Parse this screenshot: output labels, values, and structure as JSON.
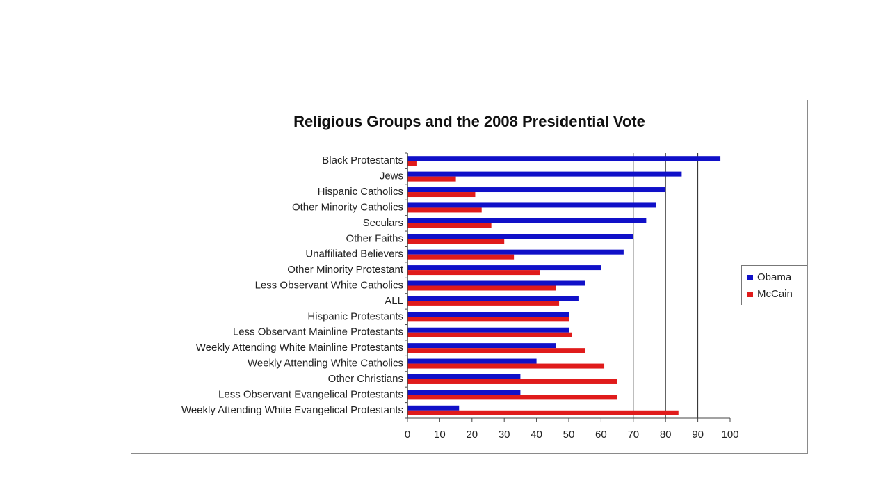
{
  "colors": {
    "obama": "#1010c8",
    "mccain": "#e01b1b",
    "grid": "#222222",
    "axis": "#444444"
  },
  "chart_data": {
    "type": "bar",
    "orientation": "horizontal",
    "title": "Religious Groups and the 2008 Presidential Vote",
    "categories": [
      "Black Protestants",
      "Jews",
      "Hispanic Catholics",
      "Other Minority Catholics",
      "Seculars",
      "Other Faiths",
      "Unaffiliated Believers",
      "Other Minority Protestant",
      "Less Observant White Catholics",
      "ALL",
      "Hispanic Protestants",
      "Less Observant Mainline Protestants",
      "Weekly Attending White Mainline Protestants",
      "Weekly Attending White Catholics",
      "Other Christians",
      "Less Observant Evangelical Protestants",
      "Weekly Attending White Evangelical Protestants"
    ],
    "series": [
      {
        "name": "Obama",
        "color": "#1010c8",
        "values": [
          97,
          85,
          80,
          77,
          74,
          70,
          67,
          60,
          55,
          53,
          50,
          50,
          46,
          40,
          35,
          35,
          16
        ]
      },
      {
        "name": "McCain",
        "color": "#e01b1b",
        "values": [
          3,
          15,
          21,
          23,
          26,
          30,
          33,
          41,
          46,
          47,
          50,
          51,
          55,
          61,
          65,
          65,
          84
        ]
      }
    ],
    "xlim": [
      0,
      100
    ],
    "xticks": [
      "0",
      "10",
      "20",
      "30",
      "40",
      "50",
      "60",
      "70",
      "80",
      "90",
      "100"
    ],
    "grid": "vertical gridlines at 70, 80, 90",
    "legend": "right"
  }
}
